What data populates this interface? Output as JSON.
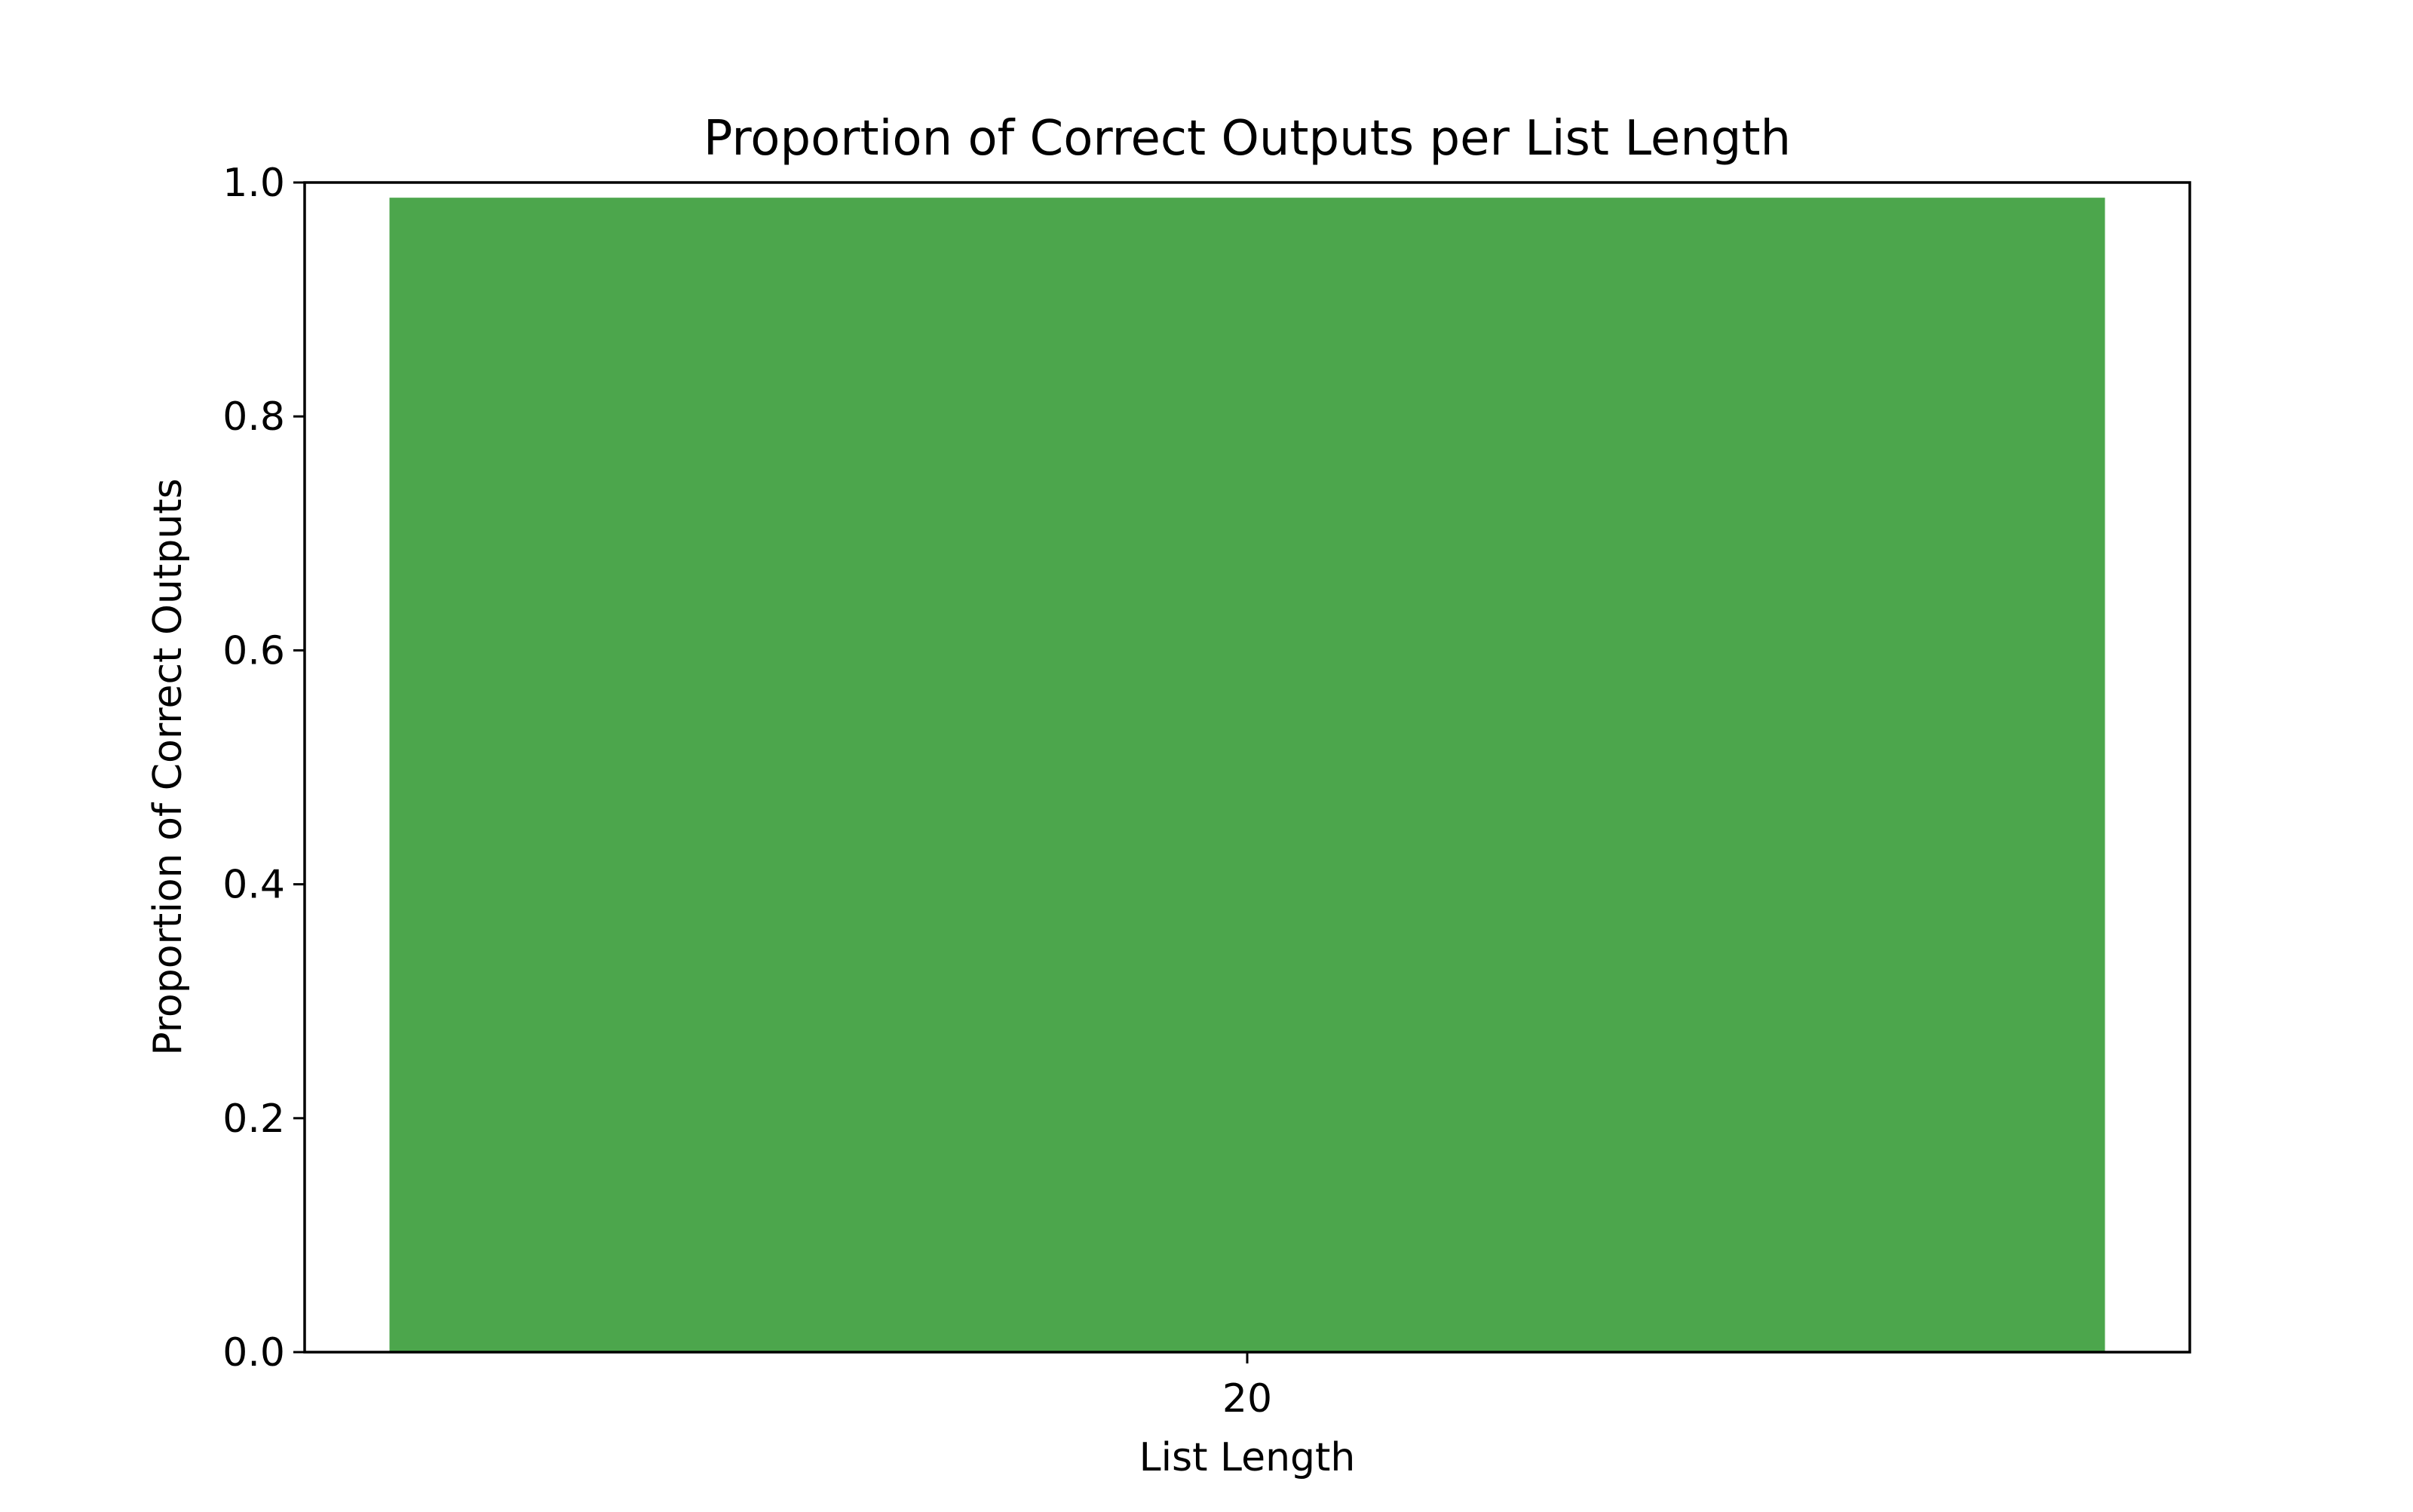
{
  "chart_data": {
    "type": "bar",
    "title": "Proportion of Correct Outputs per List Length",
    "xlabel": "List Length",
    "ylabel": "Proportion of Correct Outputs",
    "categories": [
      "20"
    ],
    "values": [
      0.987
    ],
    "ylim": [
      0,
      1.0
    ],
    "yticks": [
      "0.0",
      "0.2",
      "0.4",
      "0.6",
      "0.8",
      "1.0"
    ],
    "bar_color": "#4ca64c",
    "grid": false,
    "legend": false
  }
}
